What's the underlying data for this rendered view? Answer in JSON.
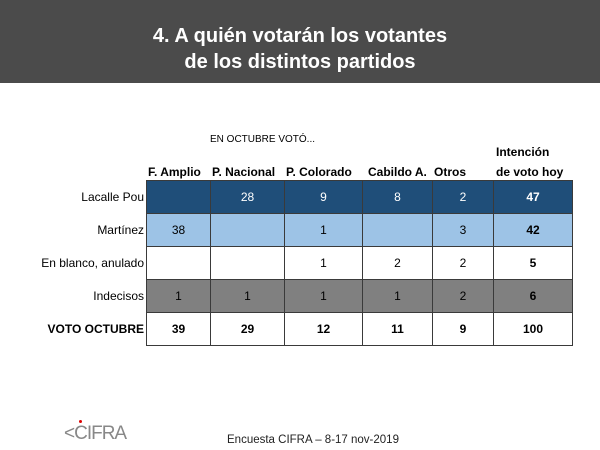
{
  "title": {
    "line1": "4. A quién votarán los votantes",
    "line2": "de los distintos partidos"
  },
  "super_header": "EN OCTUBRE VOTÓ...",
  "columns": [
    "F. Amplio",
    "P. Nacional",
    "P. Colorado",
    "Cabildo A.",
    "Otros"
  ],
  "total_column": {
    "line1": "Intención",
    "line2": "de voto hoy"
  },
  "rows": [
    {
      "label": "Lacalle Pou",
      "values": [
        "",
        "28",
        "9",
        "8",
        "2"
      ],
      "total": "47"
    },
    {
      "label": "Martínez",
      "values": [
        "38",
        "",
        "1",
        "",
        "3"
      ],
      "total": "42"
    },
    {
      "label": "En blanco, anulado",
      "values": [
        "",
        "",
        "1",
        "2",
        "2"
      ],
      "total": "5"
    },
    {
      "label": "Indecisos",
      "values": [
        "1",
        "1",
        "1",
        "1",
        "2"
      ],
      "total": "6"
    },
    {
      "label": "VOTO OCTUBRE",
      "values": [
        "39",
        "29",
        "12",
        "11",
        "9"
      ],
      "total": "100"
    }
  ],
  "colors": {
    "lacalle": "#1f4e79",
    "martinez": "#9dc3e6",
    "indecisos": "#808080"
  },
  "logo_text": "CIFRA",
  "footer": "Encuesta CIFRA – 8-17 nov-2019"
}
